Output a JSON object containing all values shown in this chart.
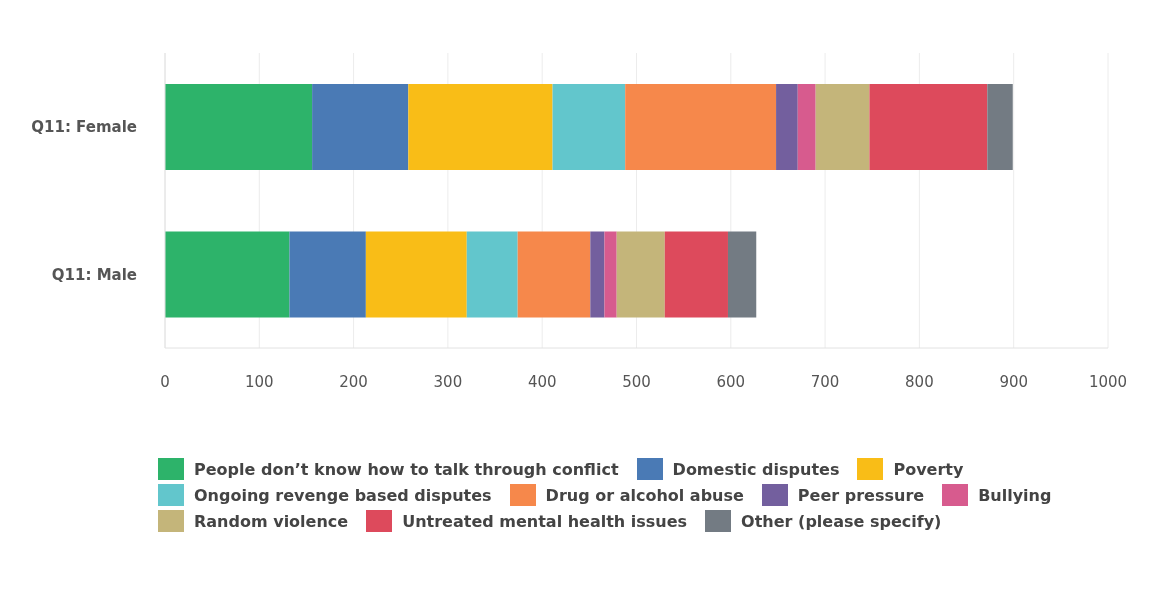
{
  "chart_data": {
    "type": "bar",
    "orientation": "horizontal",
    "stacked": true,
    "categories": [
      "Q11: Female",
      "Q11: Male"
    ],
    "series": [
      {
        "name": "People don’t know how to talk through conflict",
        "color": "#2db36a",
        "values": [
          156,
          132
        ]
      },
      {
        "name": "Domestic disputes",
        "color": "#4a7ab5",
        "values": [
          102,
          81
        ]
      },
      {
        "name": "Poverty",
        "color": "#f9bd17",
        "values": [
          153,
          107
        ]
      },
      {
        "name": "Ongoing revenge based disputes",
        "color": "#62c6cc",
        "values": [
          77,
          54
        ]
      },
      {
        "name": "Drug or alcohol abuse",
        "color": "#f6884b",
        "values": [
          160,
          77
        ]
      },
      {
        "name": "Peer pressure",
        "color": "#735f9e",
        "values": [
          23,
          15
        ]
      },
      {
        "name": "Bullying",
        "color": "#d75b8e",
        "values": [
          19,
          13
        ]
      },
      {
        "name": "Random violence",
        "color": "#c4b57a",
        "values": [
          57,
          51
        ]
      },
      {
        "name": "Untreated mental health issues",
        "color": "#dd4a5c",
        "values": [
          125,
          67
        ]
      },
      {
        "name": "Other (please specify)",
        "color": "#737b83",
        "values": [
          27,
          30
        ]
      }
    ],
    "xlim": [
      0,
      1000
    ],
    "xticks": [
      0,
      100,
      200,
      300,
      400,
      500,
      600,
      700,
      800,
      900,
      1000
    ],
    "grid": "x",
    "legend": "bottom"
  }
}
